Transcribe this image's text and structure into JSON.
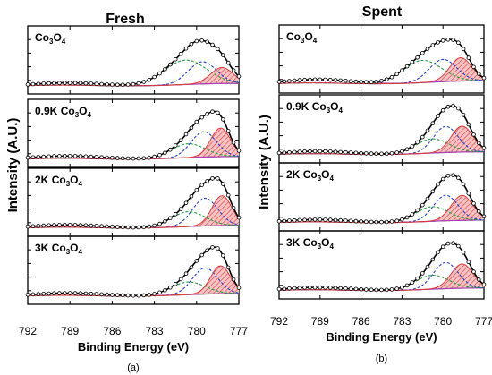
{
  "colors": {
    "spectrum": "#000000",
    "fit": "#000000",
    "component_green": "#1e9e3e",
    "component_blue": "#1f3fd6",
    "component_red": "#e03a3a",
    "component_magenta": "#b23bb8",
    "background": "#808080",
    "hatch_fill": "#f2a6a6"
  },
  "chart_data": [
    {
      "type": "line",
      "panel_label": "(a)",
      "title": "Fresh",
      "xlabel": "Binding Energy (eV)",
      "ylabel": "Intensity (A.U.)",
      "xlim": [
        792,
        777
      ],
      "x_reversed": true,
      "xticks": [
        "792",
        "789",
        "786",
        "783",
        "780",
        "777"
      ],
      "y_tick_labels": "none",
      "subplots": [
        {
          "label_prefix": "",
          "label_main": "Co",
          "label_sub1": "3",
          "label_mid": "O",
          "label_sub2": "4",
          "peak_height": 0.82,
          "green": {
            "center": 780.8,
            "amplitude": 0.55,
            "sigma": 1.5
          },
          "blue": {
            "center": 779.6,
            "amplitude": 0.5,
            "sigma": 1.0
          },
          "red": {
            "center": 778.2,
            "amplitude": 0.36,
            "sigma": 0.8
          },
          "magenta": {
            "center": 789.0,
            "amplitude": 0.05,
            "sigma": 2.5
          }
        },
        {
          "label_prefix": "0.9K ",
          "label_main": "Co",
          "label_sub1": "3",
          "label_mid": "O",
          "label_sub2": "4",
          "peak_height": 0.86,
          "green": {
            "center": 780.6,
            "amplitude": 0.3,
            "sigma": 1.2
          },
          "blue": {
            "center": 779.5,
            "amplitude": 0.55,
            "sigma": 0.9
          },
          "red": {
            "center": 778.3,
            "amplitude": 0.62,
            "sigma": 0.7
          },
          "magenta": {
            "center": 789.0,
            "amplitude": 0.05,
            "sigma": 2.5
          }
        },
        {
          "label_prefix": "2K ",
          "label_main": "Co",
          "label_sub1": "3",
          "label_mid": "O",
          "label_sub2": "4",
          "peak_height": 0.9,
          "green": {
            "center": 780.6,
            "amplitude": 0.32,
            "sigma": 1.2
          },
          "blue": {
            "center": 779.4,
            "amplitude": 0.6,
            "sigma": 0.9
          },
          "red": {
            "center": 778.2,
            "amplitude": 0.65,
            "sigma": 0.7
          },
          "magenta": {
            "center": 789.0,
            "amplitude": 0.05,
            "sigma": 2.5
          }
        },
        {
          "label_prefix": "3K ",
          "label_main": "Co",
          "label_sub1": "3",
          "label_mid": "O",
          "label_sub2": "4",
          "peak_height": 0.88,
          "green": {
            "center": 780.6,
            "amplitude": 0.28,
            "sigma": 1.2
          },
          "blue": {
            "center": 779.4,
            "amplitude": 0.58,
            "sigma": 0.9
          },
          "red": {
            "center": 778.3,
            "amplitude": 0.62,
            "sigma": 0.7
          },
          "magenta": {
            "center": 789.0,
            "amplitude": 0.05,
            "sigma": 2.5
          }
        }
      ]
    },
    {
      "type": "line",
      "panel_label": "(b)",
      "title": "Spent",
      "xlabel": "Binding Energy (eV)",
      "ylabel": "Intensity (A.U.)",
      "xlim": [
        792,
        777
      ],
      "x_reversed": true,
      "xticks": [
        "792",
        "789",
        "786",
        "783",
        "780",
        "777"
      ],
      "y_tick_labels": "none",
      "subplots": [
        {
          "label_prefix": "",
          "label_main": "Co",
          "label_sub1": "3",
          "label_mid": "O",
          "label_sub2": "4",
          "peak_height": 0.82,
          "green": {
            "center": 781.5,
            "amplitude": 0.4,
            "sigma": 1.4
          },
          "blue": {
            "center": 780.0,
            "amplitude": 0.4,
            "sigma": 1.0
          },
          "red": {
            "center": 778.7,
            "amplitude": 0.42,
            "sigma": 0.8
          },
          "magenta": {
            "center": 789.0,
            "amplitude": 0.06,
            "sigma": 2.5
          }
        },
        {
          "label_prefix": "0.9K ",
          "label_main": "Co",
          "label_sub1": "3",
          "label_mid": "O",
          "label_sub2": "4",
          "peak_height": 0.88,
          "green": {
            "center": 780.8,
            "amplitude": 0.3,
            "sigma": 1.2
          },
          "blue": {
            "center": 779.8,
            "amplitude": 0.55,
            "sigma": 0.9
          },
          "red": {
            "center": 778.6,
            "amplitude": 0.55,
            "sigma": 0.8
          },
          "magenta": {
            "center": 789.0,
            "amplitude": 0.05,
            "sigma": 2.5
          }
        },
        {
          "label_prefix": "2K ",
          "label_main": "Co",
          "label_sub1": "3",
          "label_mid": "O",
          "label_sub2": "4",
          "peak_height": 0.86,
          "green": {
            "center": 780.8,
            "amplitude": 0.32,
            "sigma": 1.2
          },
          "blue": {
            "center": 779.8,
            "amplitude": 0.56,
            "sigma": 0.9
          },
          "red": {
            "center": 778.6,
            "amplitude": 0.55,
            "sigma": 0.8
          },
          "magenta": {
            "center": 789.0,
            "amplitude": 0.05,
            "sigma": 2.5
          }
        },
        {
          "label_prefix": "3K ",
          "label_main": "Co",
          "label_sub1": "3",
          "label_mid": "O",
          "label_sub2": "4",
          "peak_height": 0.86,
          "green": {
            "center": 780.8,
            "amplitude": 0.3,
            "sigma": 1.2
          },
          "blue": {
            "center": 779.8,
            "amplitude": 0.56,
            "sigma": 0.9
          },
          "red": {
            "center": 778.6,
            "amplitude": 0.52,
            "sigma": 0.8
          },
          "magenta": {
            "center": 789.0,
            "amplitude": 0.05,
            "sigma": 2.5
          }
        }
      ]
    }
  ]
}
